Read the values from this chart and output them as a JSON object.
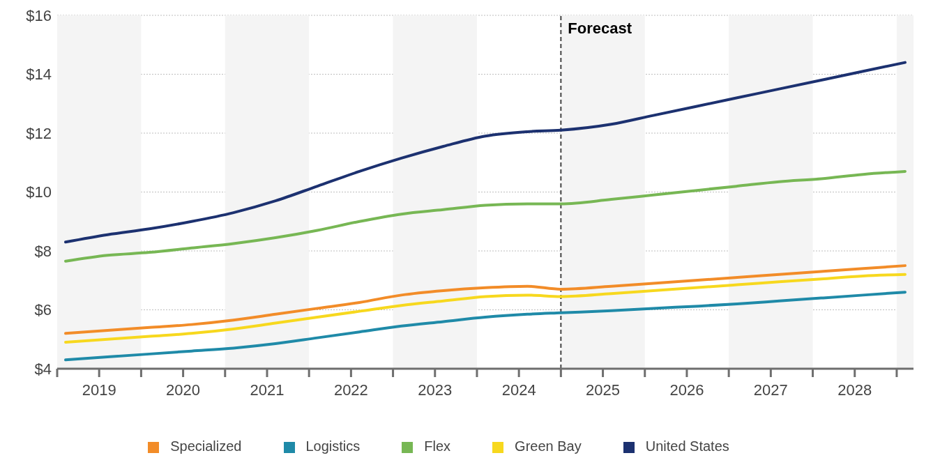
{
  "chart_data": {
    "type": "line",
    "x": [
      2019.1,
      2019.6,
      2020.1,
      2020.6,
      2021.1,
      2021.6,
      2022.1,
      2022.6,
      2023.1,
      2023.6,
      2024.1,
      2024.6,
      2025.0,
      2025.6,
      2026.1,
      2026.6,
      2027.1,
      2027.6,
      2028.1,
      2028.6,
      2029.1
    ],
    "series": [
      {
        "name": "Specialized",
        "color": "#f28c28",
        "values": [
          5.2,
          5.3,
          5.4,
          5.5,
          5.65,
          5.85,
          6.05,
          6.25,
          6.5,
          6.65,
          6.75,
          6.8,
          6.7,
          6.8,
          6.9,
          7.0,
          7.1,
          7.2,
          7.3,
          7.4,
          7.5
        ]
      },
      {
        "name": "Logistics",
        "color": "#1f8aa8",
        "values": [
          4.3,
          4.4,
          4.5,
          4.6,
          4.7,
          4.85,
          5.05,
          5.25,
          5.45,
          5.6,
          5.75,
          5.85,
          5.9,
          5.97,
          6.05,
          6.12,
          6.2,
          6.3,
          6.4,
          6.5,
          6.6
        ]
      },
      {
        "name": "Flex",
        "color": "#77b754",
        "values": [
          7.65,
          7.85,
          7.95,
          8.1,
          8.25,
          8.45,
          8.7,
          9.0,
          9.25,
          9.4,
          9.55,
          9.6,
          9.6,
          9.75,
          9.9,
          10.05,
          10.2,
          10.35,
          10.45,
          10.6,
          10.7
        ]
      },
      {
        "name": "Green Bay",
        "color": "#f7d81e",
        "values": [
          4.9,
          5.0,
          5.1,
          5.2,
          5.35,
          5.55,
          5.75,
          5.95,
          6.15,
          6.3,
          6.45,
          6.5,
          6.45,
          6.55,
          6.65,
          6.75,
          6.85,
          6.95,
          7.05,
          7.15,
          7.2
        ]
      },
      {
        "name": "United States",
        "color": "#1c3170",
        "values": [
          8.3,
          8.55,
          8.75,
          9.0,
          9.3,
          9.7,
          10.2,
          10.7,
          11.15,
          11.55,
          11.9,
          12.05,
          12.1,
          12.3,
          12.6,
          12.9,
          13.2,
          13.5,
          13.8,
          14.1,
          14.4
        ]
      }
    ],
    "xlim": [
      2019,
      2029.2
    ],
    "xticks": [
      {
        "value": 2019,
        "label": null
      },
      {
        "value": 2019.5,
        "label": "2019"
      },
      {
        "value": 2020,
        "label": null
      },
      {
        "value": 2020.5,
        "label": "2020"
      },
      {
        "value": 2021,
        "label": null
      },
      {
        "value": 2021.5,
        "label": "2021"
      },
      {
        "value": 2022,
        "label": null
      },
      {
        "value": 2022.5,
        "label": "2022"
      },
      {
        "value": 2023,
        "label": null
      },
      {
        "value": 2023.5,
        "label": "2023"
      },
      {
        "value": 2024,
        "label": null
      },
      {
        "value": 2024.5,
        "label": "2024"
      },
      {
        "value": 2025,
        "label": null
      },
      {
        "value": 2025.5,
        "label": "2025"
      },
      {
        "value": 2026,
        "label": null
      },
      {
        "value": 2026.5,
        "label": "2026"
      },
      {
        "value": 2027,
        "label": null
      },
      {
        "value": 2027.5,
        "label": "2027"
      },
      {
        "value": 2028,
        "label": null
      },
      {
        "value": 2028.5,
        "label": "2028"
      },
      {
        "value": 2029,
        "label": null
      }
    ],
    "ylim": [
      4,
      16
    ],
    "yticks": [
      {
        "value": 4,
        "label": "$4"
      },
      {
        "value": 6,
        "label": "$6"
      },
      {
        "value": 8,
        "label": "$8"
      },
      {
        "value": 10,
        "label": "$10"
      },
      {
        "value": 12,
        "label": "$12"
      },
      {
        "value": 14,
        "label": "$14"
      },
      {
        "value": 16,
        "label": "$16"
      }
    ],
    "ref_lines": [
      {
        "axis": "x",
        "value": 2025,
        "label": "Forecast",
        "color": "#444444",
        "line_style": "dashed"
      }
    ],
    "bands": [
      {
        "axis": "x",
        "from": 2019,
        "to": 2020,
        "color": "#f4f4f4"
      },
      {
        "axis": "x",
        "from": 2021,
        "to": 2022,
        "color": "#f4f4f4"
      },
      {
        "axis": "x",
        "from": 2023,
        "to": 2024,
        "color": "#f4f4f4"
      },
      {
        "axis": "x",
        "from": 2025,
        "to": 2026,
        "color": "#f4f4f4"
      },
      {
        "axis": "x",
        "from": 2027,
        "to": 2028,
        "color": "#f4f4f4"
      },
      {
        "axis": "x",
        "from": 2029,
        "to": 2029.2,
        "color": "#f4f4f4"
      }
    ],
    "grid": "y",
    "legend": "bottom",
    "marker": "none",
    "line_style": "solid"
  }
}
